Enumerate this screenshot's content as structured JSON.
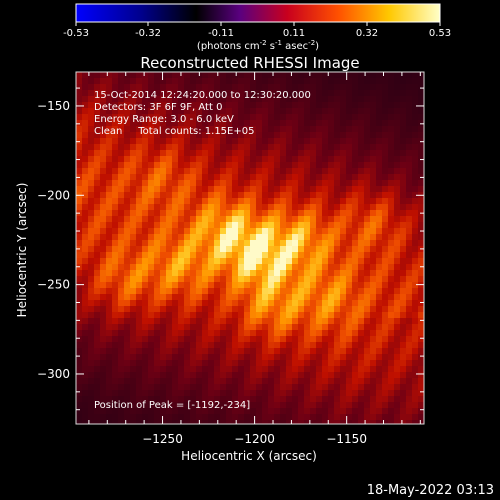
{
  "colorbar": {
    "ticks": [
      "-0.53",
      "-0.32",
      "-0.11",
      "0.11",
      "0.32",
      "0.53"
    ],
    "unit_label": "(photons cm",
    "unit_sup1": "-2",
    "unit_mid": " s",
    "unit_sup2": "-1",
    "unit_mid2": " asec",
    "unit_sup3": "-2",
    "unit_end": ")"
  },
  "chart_data": {
    "type": "heatmap",
    "title": "Reconstructed RHESSI Image",
    "xlabel": "Heliocentric X (arcsec)",
    "ylabel": "Heliocentric Y (arcsec)",
    "xlim": [
      -1297,
      -1108
    ],
    "ylim": [
      -328,
      -131
    ],
    "xticks": [
      {
        "value": -1250,
        "label": "−1250"
      },
      {
        "value": -1200,
        "label": "−1200"
      },
      {
        "value": -1150,
        "label": "−1150"
      }
    ],
    "yticks": [
      {
        "value": -150,
        "label": "−150"
      },
      {
        "value": -200,
        "label": "−200"
      },
      {
        "value": -250,
        "label": "−250"
      },
      {
        "value": -300,
        "label": "−300"
      }
    ],
    "colorscale": {
      "min": -0.53,
      "max": 0.53,
      "colors": [
        "#0000ff",
        "#000000",
        "#5a0080",
        "#c00000",
        "#ff8000",
        "#ffff80",
        "#ffffff"
      ]
    },
    "sources": [
      {
        "x": -1197,
        "y": -234,
        "intensity": 0.53
      },
      {
        "x": -1215,
        "y": -220,
        "intensity": 0.42
      },
      {
        "x": -1175,
        "y": -225,
        "intensity": 0.36
      },
      {
        "x": -1240,
        "y": -240,
        "intensity": 0.3
      },
      {
        "x": -1270,
        "y": -248,
        "intensity": 0.25
      },
      {
        "x": -1190,
        "y": -262,
        "intensity": 0.3
      },
      {
        "x": -1160,
        "y": -258,
        "intensity": 0.24
      },
      {
        "x": -1135,
        "y": -215,
        "intensity": 0.22
      },
      {
        "x": -1250,
        "y": -190,
        "intensity": 0.16
      }
    ],
    "info_lines": [
      "15-Oct-2014 12:24:20.000 to 12:30:20.000",
      "Detectors: 3F 6F 9F, Att 0",
      "Energy Range: 3.0 - 6.0 keV",
      "Clean     Total counts: 1.15E+05"
    ],
    "peak_label": "Position of Peak = [-1192,-234]"
  },
  "footer": {
    "timestamp": "18-May-2022 03:13"
  }
}
